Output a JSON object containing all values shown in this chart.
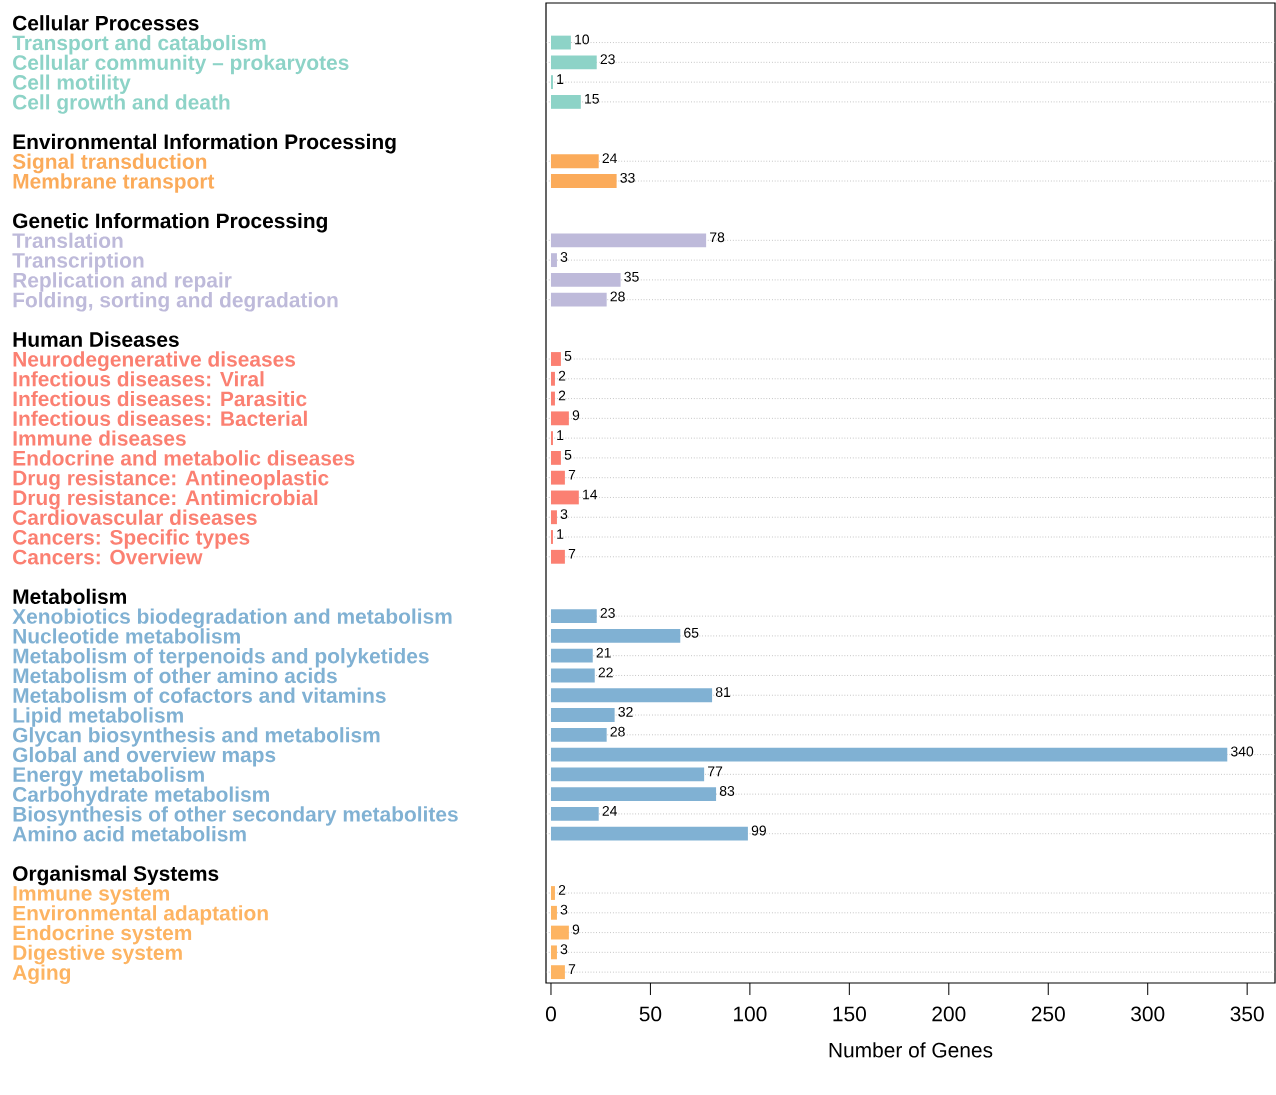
{
  "chart_data": {
    "type": "bar",
    "orientation": "horizontal",
    "xlabel": "Number of Genes",
    "categories": [
      "Cellular Processes",
      "Transport and catabolism",
      "Cellular community – prokaryotes",
      "Cell motility",
      "Cell growth and death",
      "Environmental Information Processing",
      "Signal transduction",
      "Membrane transport",
      "Genetic Information Processing",
      "Translation",
      "Transcription",
      "Replication and repair",
      "Folding, sorting and degradation",
      "Human Diseases",
      "Neurodegenerative diseases",
      "Infectious diseases: Viral",
      "Infectious diseases: Parasitic",
      "Infectious diseases: Bacterial",
      "Immune diseases",
      "Endocrine and metabolic diseases",
      "Drug resistance: Antineoplastic",
      "Drug resistance: Antimicrobial",
      "Cardiovascular diseases",
      "Cancers: Specific types",
      "Cancers: Overview",
      "Metabolism",
      "Xenobiotics biodegradation and metabolism",
      "Nucleotide metabolism",
      "Metabolism of terpenoids and polyketides",
      "Metabolism of other amino acids",
      "Metabolism of cofactors and vitamins",
      "Lipid metabolism",
      "Glycan biosynthesis and metabolism",
      "Global and overview maps",
      "Energy metabolism",
      "Carbohydrate metabolism",
      "Biosynthesis of other secondary metabolites",
      "Amino acid metabolism",
      "Organismal Systems",
      "Immune system",
      "Environmental adaptation",
      "Endocrine system",
      "Digestive system",
      "Aging"
    ],
    "values": [
      null,
      10,
      23,
      1,
      15,
      null,
      24,
      33,
      null,
      78,
      3,
      35,
      28,
      null,
      5,
      2,
      2,
      9,
      1,
      5,
      7,
      14,
      3,
      1,
      7,
      null,
      23,
      65,
      21,
      22,
      81,
      32,
      28,
      340,
      77,
      83,
      24,
      99,
      null,
      2,
      3,
      9,
      3,
      7
    ],
    "colors": [
      "#000000",
      "#8dd3c7",
      "#8dd3c7",
      "#8dd3c7",
      "#8dd3c7",
      "#000000",
      "#fbab5a",
      "#fbab5a",
      "#000000",
      "#bebada",
      "#bebada",
      "#bebada",
      "#bebada",
      "#000000",
      "#fb8072",
      "#fb8072",
      "#fb8072",
      "#fb8072",
      "#fb8072",
      "#fb8072",
      "#fb8072",
      "#fb8072",
      "#fb8072",
      "#fb8072",
      "#fb8072",
      "#000000",
      "#80b1d3",
      "#80b1d3",
      "#80b1d3",
      "#80b1d3",
      "#80b1d3",
      "#80b1d3",
      "#80b1d3",
      "#80b1d3",
      "#80b1d3",
      "#80b1d3",
      "#80b1d3",
      "#80b1d3",
      "#000000",
      "#fdb462",
      "#fdb462",
      "#fdb462",
      "#fdb462",
      "#fdb462"
    ],
    "xlim": [
      -2.5,
      364
    ],
    "xticks": [
      0,
      50,
      100,
      150,
      200,
      250,
      300,
      350
    ],
    "data_labels": true,
    "grid": "y"
  }
}
